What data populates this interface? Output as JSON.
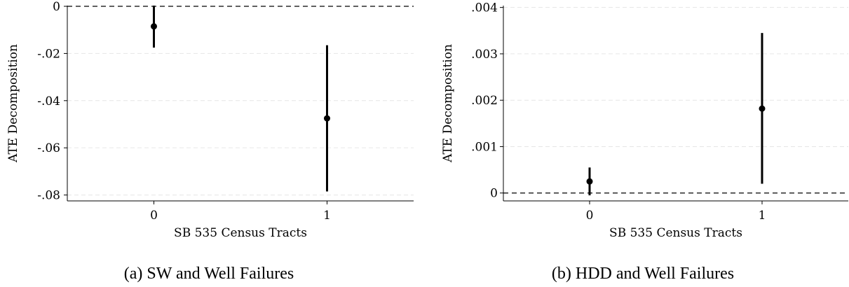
{
  "chart_data": [
    {
      "type": "scatter",
      "caption": "(a) SW and Well Failures",
      "xlabel": "SB 535 Census Tracts",
      "ylabel": "ATE Decomposition",
      "x_ticks": [
        "0",
        "1"
      ],
      "xlim": [
        -0.5,
        1.5
      ],
      "y_ticks": [
        0,
        -0.02,
        -0.04,
        -0.06,
        -0.08
      ],
      "y_tick_labels": [
        "0",
        "-.02",
        "-.04",
        "-.06",
        "-.08"
      ],
      "ylim": [
        -0.0825,
        0.0003
      ],
      "reference_line_y": 0,
      "grid": true,
      "points": [
        {
          "x": 0,
          "estimate": -0.0085,
          "ci_low": -0.0175,
          "ci_high": 0.0003
        },
        {
          "x": 1,
          "estimate": -0.0475,
          "ci_low": -0.0785,
          "ci_high": -0.0165
        }
      ]
    },
    {
      "type": "scatter",
      "caption": "(b) HDD and Well Failures",
      "xlabel": "SB 535 Census Tracts",
      "ylabel": "ATE Decomposition",
      "x_ticks": [
        "0",
        "1"
      ],
      "xlim": [
        -0.5,
        1.5
      ],
      "y_ticks": [
        0,
        0.001,
        0.002,
        0.003,
        0.004
      ],
      "y_tick_labels": [
        "0",
        ".001",
        ".002",
        ".003",
        ".004"
      ],
      "ylim": [
        -0.00017,
        0.00404
      ],
      "reference_line_y": 0,
      "grid": true,
      "points": [
        {
          "x": 0,
          "estimate": 0.00025,
          "ci_low": -5e-05,
          "ci_high": 0.00055
        },
        {
          "x": 1,
          "estimate": 0.00182,
          "ci_low": 0.0002,
          "ci_high": 0.00345
        }
      ]
    }
  ]
}
